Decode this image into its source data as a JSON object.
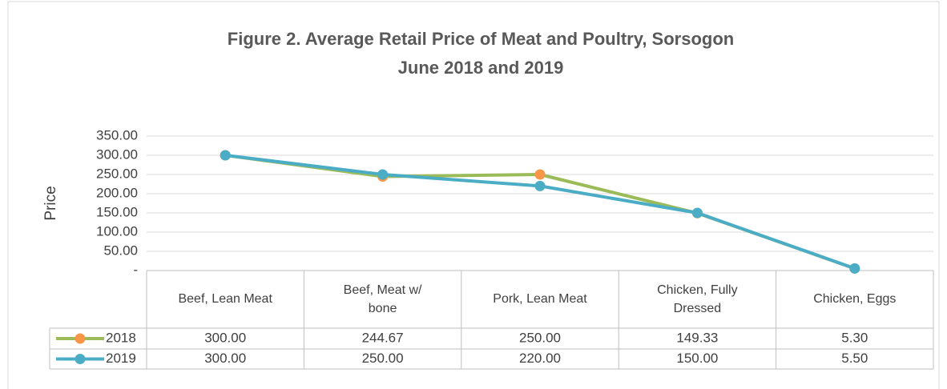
{
  "chart_data": {
    "type": "line",
    "title": "Figure 2. Average Retail Price of Meat and Poultry, Sorsogon",
    "subtitle": "June 2018 and 2019",
    "y_label": "Price",
    "categories": [
      "Beef, Lean Meat",
      "Beef, Meat w/ bone",
      "Pork, Lean Meat",
      "Chicken, Fully Dressed",
      "Chicken, Eggs"
    ],
    "series": [
      {
        "name": "2018",
        "color": "#9bbb59",
        "marker_color": "#f79646",
        "values": [
          300,
          244.67,
          250,
          149.33,
          5.3
        ],
        "value_labels": [
          "300.00",
          "244.67",
          "250.00",
          "149.33",
          "5.30"
        ]
      },
      {
        "name": "2019",
        "color": "#4bacc6",
        "marker_color": "#4bacc6",
        "values": [
          300,
          250,
          220,
          150,
          5.5
        ],
        "value_labels": [
          "300.00",
          "250.00",
          "220.00",
          "150.00",
          "5.50"
        ]
      }
    ],
    "ylim": [
      0,
      350
    ],
    "yticks": [
      {
        "value": 0,
        "label": "-"
      },
      {
        "value": 50,
        "label": "50.00"
      },
      {
        "value": 100,
        "label": "100.00"
      },
      {
        "value": 150,
        "label": "150.00"
      },
      {
        "value": 200,
        "label": "200.00"
      },
      {
        "value": 250,
        "label": "250.00"
      },
      {
        "value": 300,
        "label": "300.00"
      },
      {
        "value": 350,
        "label": "350.00"
      }
    ],
    "grid": true
  }
}
